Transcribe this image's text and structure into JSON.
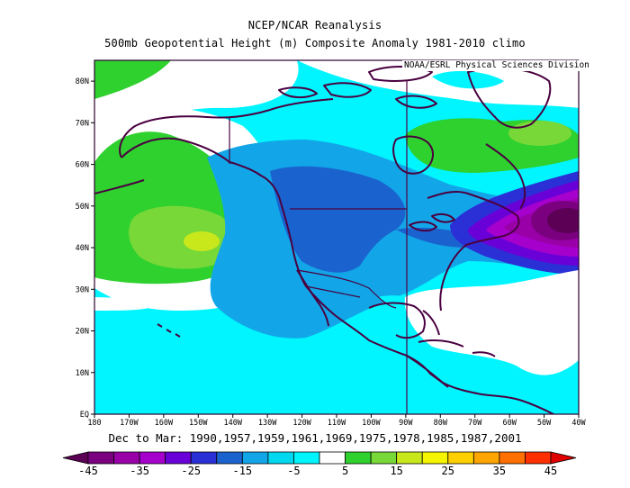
{
  "header": {
    "title": "NCEP/NCAR Reanalysis",
    "subtitle": "500mb Geopotential Height (m) Composite Anomaly 1981-2010 climo",
    "credit": "NOAA/ESRL Physical Sciences Division"
  },
  "footer": {
    "date_label": "Dec to Mar: 1990,1957,1959,1961,1969,1975,1978,1985,1987,2001"
  },
  "map": {
    "lon_range": [
      -180,
      -40
    ],
    "lat_range": [
      0,
      85
    ],
    "lat_ticks": [
      "EQ",
      "10N",
      "20N",
      "30N",
      "40N",
      "50N",
      "60N",
      "70N",
      "80N"
    ],
    "lon_ticks": [
      "180",
      "170W",
      "160W",
      "150W",
      "140W",
      "130W",
      "120W",
      "110W",
      "100W",
      "90W",
      "80W",
      "70W",
      "60W",
      "50W",
      "40W"
    ],
    "features": [
      {
        "name": "Strong negative anomaly over western North Atlantic / Newfoundland",
        "level": "-45 to -30"
      },
      {
        "name": "Negative anomaly trough over western North America",
        "level": "-15 to -5"
      },
      {
        "name": "Positive anomaly ridge over central North Pacific",
        "level": "5 to 25"
      },
      {
        "name": "Positive anomaly over Hudson Bay / Greenland",
        "level": "5 to 15"
      }
    ]
  },
  "colorbar": {
    "levels": [
      -45,
      -40,
      -35,
      -30,
      -25,
      -20,
      -15,
      -10,
      -5,
      5,
      10,
      15,
      20,
      25,
      30,
      35,
      40,
      45
    ],
    "labels": [
      "-45",
      "-35",
      "-25",
      "-15",
      "-5",
      "5",
      "15",
      "25",
      "35",
      "45"
    ],
    "colors": [
      "#5c0055",
      "#7a0080",
      "#9900a8",
      "#a600cc",
      "#6a00d8",
      "#2b2fd6",
      "#1a63cf",
      "#12a6e8",
      "#00d8f0",
      "#00f5ff",
      "#ffffff",
      "#2fd12f",
      "#78d838",
      "#c8e81c",
      "#f5f500",
      "#ffd000",
      "#ffa500",
      "#ff7000",
      "#ff3000",
      "#e00000"
    ]
  },
  "style": {
    "coast_color": "#4a0040",
    "frame_color": "#2a0030"
  }
}
